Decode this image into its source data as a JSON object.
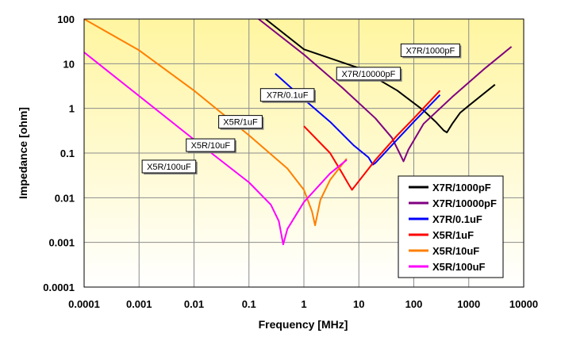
{
  "chart_data": {
    "type": "line",
    "xlabel": "Frequency   [MHz]",
    "ylabel": "Impedance [ohm]",
    "xscale": "log",
    "yscale": "log",
    "xlim": [
      0.0001,
      10000
    ],
    "ylim": [
      0.0001,
      100
    ],
    "grid": true,
    "legend_position": "bottom-right",
    "x_ticks": [
      "0.0001",
      "0.001",
      "0.01",
      "0.1",
      "1",
      "10",
      "100",
      "1000",
      "10000"
    ],
    "y_ticks": [
      "0.0001",
      "0.001",
      "0.01",
      "0.1",
      "1",
      "10",
      "100"
    ],
    "series": [
      {
        "name": "X7R/1000pF",
        "color": "#000000",
        "x": [
          0.2,
          1,
          10,
          50,
          150,
          250,
          350,
          400,
          500,
          700,
          1000,
          3000
        ],
        "y": [
          100,
          21,
          8,
          2.5,
          0.9,
          0.5,
          0.32,
          0.29,
          0.45,
          0.8,
          1.15,
          3.4
        ]
      },
      {
        "name": "X7R/10000pF",
        "color": "#800080",
        "x": [
          0.15,
          1,
          5,
          20,
          40,
          55,
          65,
          80,
          150,
          500,
          2000,
          6000
        ],
        "y": [
          100,
          16,
          2.9,
          0.6,
          0.22,
          0.1,
          0.065,
          0.12,
          0.45,
          1.8,
          8,
          24
        ]
      },
      {
        "name": "X7R/0.1uF",
        "color": "#0000ff",
        "x": [
          0.3,
          1,
          3,
          8,
          15,
          18,
          20,
          40,
          100,
          300
        ],
        "y": [
          6,
          1.6,
          0.5,
          0.15,
          0.08,
          0.055,
          0.06,
          0.15,
          0.5,
          2
        ]
      },
      {
        "name": "X5R/1uF",
        "color": "#ff0000",
        "x": [
          1,
          3,
          5,
          6.5,
          7.5,
          9,
          20,
          50,
          100,
          300
        ],
        "y": [
          0.4,
          0.1,
          0.035,
          0.02,
          0.015,
          0.02,
          0.07,
          0.25,
          0.6,
          2.5
        ]
      },
      {
        "name": "X5R/10uF",
        "color": "#ff7f00",
        "x": [
          0.0001,
          0.001,
          0.01,
          0.1,
          0.5,
          1,
          1.4,
          1.6,
          2,
          3,
          6
        ],
        "y": [
          100,
          20,
          2.5,
          0.25,
          0.045,
          0.015,
          0.005,
          0.0024,
          0.009,
          0.025,
          0.075
        ]
      },
      {
        "name": "X5R/100uF",
        "color": "#ff00ff",
        "x": [
          0.0001,
          0.001,
          0.01,
          0.1,
          0.25,
          0.35,
          0.42,
          0.5,
          1,
          3,
          6
        ],
        "y": [
          18,
          1.9,
          0.2,
          0.022,
          0.007,
          0.003,
          0.0009,
          0.002,
          0.008,
          0.035,
          0.07
        ]
      }
    ],
    "annotations": [
      {
        "text": "X7R/1000pF",
        "x": 200,
        "y": 20
      },
      {
        "text": "X7R/10000pF",
        "x": 15,
        "y": 6
      },
      {
        "text": "X7R/0.1uF",
        "x": 0.5,
        "y": 2
      },
      {
        "text": "X5R/1uF",
        "x": 0.07,
        "y": 0.5
      },
      {
        "text": "X5R/10uF",
        "x": 0.02,
        "y": 0.15
      },
      {
        "text": "X5R/100uF",
        "x": 0.0035,
        "y": 0.05
      }
    ]
  }
}
